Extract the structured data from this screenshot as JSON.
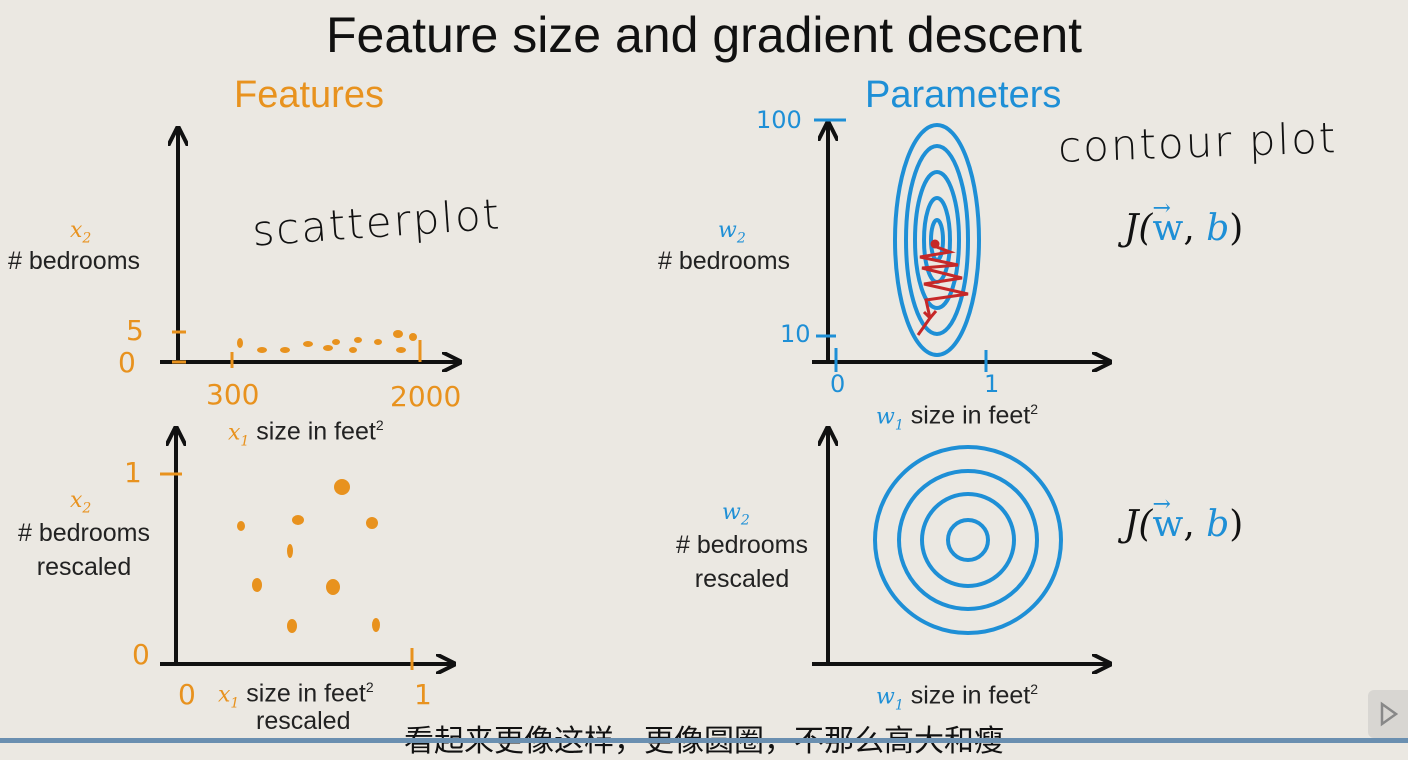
{
  "slide": {
    "title": "Feature size and gradient descent",
    "features_heading": "Features",
    "parameters_heading": "Parameters",
    "scatterplot_note": "scatterplot",
    "contour_note": "contour plot"
  },
  "top_left": {
    "y_var": "x",
    "y_sub": "2",
    "y_label": "# bedrooms",
    "y_tick_low": "0",
    "y_tick_high": "5",
    "x_tick_low": "300",
    "x_tick_high": "2000",
    "x_var": "x",
    "x_sub": "1",
    "x_label": "size in feet",
    "x_sup": "2"
  },
  "bottom_left": {
    "y_var": "x",
    "y_sub": "2",
    "y_label_1": "# bedrooms",
    "y_label_2": "rescaled",
    "y_tick_low": "0",
    "y_tick_high": "1",
    "x_tick_low": "0",
    "x_tick_high": "1",
    "x_var": "x",
    "x_sub": "1",
    "x_label": "size in feet",
    "x_sup": "2",
    "x_label_2": "rescaled"
  },
  "top_right": {
    "y_var": "w",
    "y_sub": "2",
    "y_label": "# bedrooms",
    "y_tick_low": "10",
    "y_tick_high": "100",
    "x_tick_low": "0",
    "x_tick_high": "1",
    "x_var": "w",
    "x_sub": "1",
    "x_label": "size in feet",
    "x_sup": "2",
    "cost_j": "J(",
    "cost_w": "w",
    "cost_comma": ", ",
    "cost_b": "b",
    "cost_close": ")"
  },
  "bottom_right": {
    "y_var": "w",
    "y_sub": "2",
    "y_label_1": "# bedrooms",
    "y_label_2": "rescaled",
    "x_var": "w",
    "x_sub": "1",
    "x_label": "size in feet",
    "x_sup": "2",
    "cost_j": "J(",
    "cost_w": "w",
    "cost_comma": ", ",
    "cost_b": "b",
    "cost_close": ")"
  },
  "subtitle": "看起来更像这样，更像圆圈，不那么高大和瘦",
  "colors": {
    "features": "#e8921e",
    "parameters": "#1e8fd6",
    "path": "#c62828",
    "background": "#ebe8e2"
  }
}
